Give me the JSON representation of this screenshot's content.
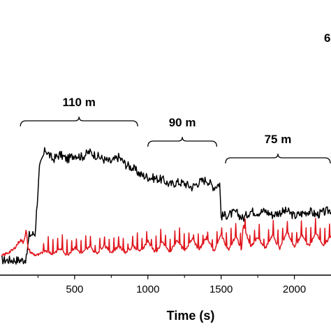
{
  "chart_data": {
    "type": "line",
    "title": "",
    "xlabel": "Time (s)",
    "ylabel": "",
    "xlim": [
      0,
      2250
    ],
    "x_ticks": [
      500,
      1000,
      1500,
      2000
    ],
    "x_tick_labels": [
      "500",
      "1000",
      "1500",
      "2000"
    ],
    "grid": false,
    "segments": [
      {
        "label": "110 m",
        "x_start": 130,
        "x_end": 930
      },
      {
        "label": "90 m",
        "x_start": 1000,
        "x_end": 1470
      },
      {
        "label": "75 m",
        "x_start": 1530,
        "x_end": 2250
      },
      {
        "label": "6",
        "x_start": 2240,
        "x_end": 2250
      }
    ],
    "series": [
      {
        "color": "#000000",
        "x": [
          0,
          120,
          150,
          170,
          190,
          230,
          260,
          300,
          350,
          400,
          450,
          500,
          550,
          600,
          650,
          700,
          750,
          800,
          850,
          900,
          950,
          1000,
          1050,
          1100,
          1150,
          1200,
          1250,
          1300,
          1350,
          1400,
          1450,
          1490,
          1500,
          1550,
          1600,
          1650,
          1700,
          1750,
          1800,
          1850,
          1900,
          1950,
          2000,
          2050,
          2100,
          2150,
          2200,
          2250
        ],
        "y": [
          0.02,
          0.02,
          0.02,
          0.03,
          0.22,
          0.23,
          0.75,
          0.9,
          0.82,
          0.86,
          0.82,
          0.86,
          0.84,
          0.88,
          0.85,
          0.82,
          0.8,
          0.84,
          0.78,
          0.75,
          0.7,
          0.68,
          0.67,
          0.66,
          0.62,
          0.64,
          0.63,
          0.6,
          0.64,
          0.66,
          0.6,
          0.63,
          0.37,
          0.38,
          0.4,
          0.35,
          0.41,
          0.4,
          0.41,
          0.38,
          0.4,
          0.41,
          0.37,
          0.39,
          0.41,
          0.38,
          0.4,
          0.42
        ]
      },
      {
        "color": "#e0141c",
        "x": [
          0,
          80,
          130,
          150,
          170,
          180,
          200,
          230,
          260,
          300,
          350,
          400,
          450,
          500,
          550,
          600,
          650,
          700,
          750,
          800,
          850,
          900,
          950,
          1000,
          1050,
          1100,
          1150,
          1200,
          1250,
          1300,
          1350,
          1400,
          1450,
          1500,
          1550,
          1600,
          1640,
          1650,
          1700,
          1750,
          1800,
          1850,
          1900,
          1950,
          2000,
          2050,
          2100,
          2150,
          2200,
          2250
        ],
        "y": [
          0.05,
          0.1,
          0.18,
          0.16,
          0.26,
          0.12,
          0.08,
          0.06,
          0.06,
          0.1,
          0.07,
          0.11,
          0.06,
          0.12,
          0.07,
          0.13,
          0.07,
          0.14,
          0.08,
          0.13,
          0.08,
          0.13,
          0.09,
          0.17,
          0.08,
          0.16,
          0.08,
          0.18,
          0.09,
          0.19,
          0.1,
          0.2,
          0.09,
          0.22,
          0.1,
          0.21,
          0.1,
          0.31,
          0.12,
          0.2,
          0.11,
          0.22,
          0.11,
          0.25,
          0.12,
          0.22,
          0.13,
          0.24,
          0.13,
          0.22
        ]
      }
    ]
  }
}
